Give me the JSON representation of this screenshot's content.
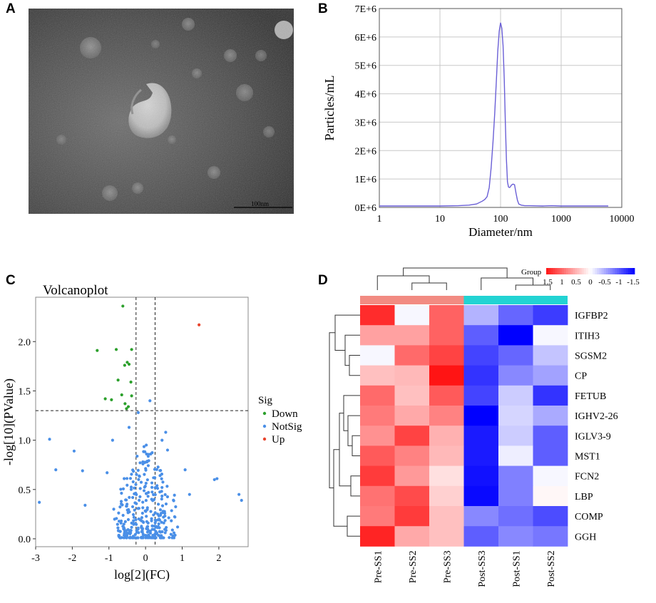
{
  "panels": {
    "a": {
      "letter": "A",
      "scale_label": "100nm"
    },
    "b": {
      "letter": "B"
    },
    "c": {
      "letter": "C"
    },
    "d": {
      "letter": "D"
    }
  },
  "colors": {
    "nta_line": "#6a5fd6",
    "down": "#2ca02c",
    "notsig": "#4a8fe7",
    "up": "#e8442c",
    "pre_bar": "#f28b82",
    "post_bar": "#22d3d3"
  },
  "chart_data": [
    {
      "id": "nta",
      "type": "line",
      "title": "",
      "xlabel": "Diameter/nm",
      "ylabel": "Particles/mL",
      "xscale": "log",
      "xlim": [
        1,
        10000
      ],
      "ylim": [
        0,
        7000000
      ],
      "xticks": [
        1,
        10,
        100,
        1000,
        10000
      ],
      "xtick_labels": [
        "1",
        "10",
        "100",
        "1000",
        "10000"
      ],
      "yticks": [
        0,
        1000000,
        2000000,
        3000000,
        4000000,
        5000000,
        6000000,
        7000000
      ],
      "ytick_labels": [
        "0E+6",
        "1E+6",
        "2E+6",
        "3E+6",
        "4E+6",
        "5E+6",
        "6E+6",
        "7E+6"
      ],
      "grid": true,
      "series": [
        {
          "name": "Particles/mL",
          "x": [
            1,
            2,
            5,
            10,
            20,
            30,
            40,
            50,
            55,
            60,
            65,
            70,
            75,
            80,
            85,
            90,
            95,
            100,
            105,
            110,
            115,
            120,
            125,
            130,
            135,
            140,
            145,
            150,
            160,
            170,
            180,
            190,
            200,
            220,
            250,
            300,
            400,
            500,
            700,
            1000,
            2000,
            6000
          ],
          "y": [
            50000,
            50000,
            50000,
            50000,
            60000,
            80000,
            120000,
            220000,
            280000,
            380000,
            700000,
            1400000,
            2300000,
            3300000,
            4400000,
            5500000,
            6200000,
            6500000,
            6300000,
            5700000,
            4500000,
            3000000,
            1700000,
            900000,
            720000,
            700000,
            720000,
            780000,
            820000,
            800000,
            500000,
            250000,
            120000,
            80000,
            60000,
            60000,
            55000,
            50000,
            60000,
            50000,
            50000,
            50000
          ]
        }
      ]
    },
    {
      "id": "volcano",
      "type": "scatter",
      "title": "Volcanoplot",
      "xlabel": "log[2](FC)",
      "ylabel": "-log[10](PValue)",
      "xlim": [
        -3,
        2.8
      ],
      "ylim": [
        -0.08,
        2.45
      ],
      "xticks": [
        -3,
        -2,
        -1,
        0,
        1,
        2
      ],
      "yticks": [
        0.0,
        0.5,
        1.0,
        1.5,
        2.0
      ],
      "ytick_labels": [
        "0.0",
        "0.5",
        "1.0",
        "1.5",
        "2.0"
      ],
      "thresholds": {
        "vertical": [
          -0.26,
          0.26
        ],
        "horizontal": 1.3
      },
      "legend_title": "Sig",
      "legend_position": "right",
      "series": [
        {
          "name": "Down",
          "points": [
            [
              -0.62,
              2.36
            ],
            [
              -1.32,
              1.91
            ],
            [
              -0.8,
              1.92
            ],
            [
              -0.38,
              1.92
            ],
            [
              -0.5,
              1.79
            ],
            [
              -0.57,
              1.76
            ],
            [
              -0.45,
              1.77
            ],
            [
              -0.75,
              1.61
            ],
            [
              -0.4,
              1.59
            ],
            [
              -0.65,
              1.46
            ],
            [
              -0.38,
              1.45
            ],
            [
              -1.1,
              1.42
            ],
            [
              -0.93,
              1.41
            ],
            [
              -0.56,
              1.37
            ],
            [
              -0.47,
              1.34
            ],
            [
              -0.52,
              1.32
            ]
          ]
        },
        {
          "name": "NotSig",
          "points": []
        },
        {
          "name": "Up",
          "points": [
            [
              1.46,
              2.17
            ]
          ]
        }
      ]
    },
    {
      "id": "heatmap",
      "type": "heatmap",
      "title": "",
      "legend_title": "Group",
      "legend_ticks": [
        "1.5",
        "1",
        "0.5",
        "0",
        "-0.5",
        "-1",
        "-1.5"
      ],
      "rows": [
        "IGFBP2",
        "ITIH3",
        "SGSM2",
        "CP",
        "FETUB",
        "IGHV2-26",
        "IGLV3-9",
        "MST1",
        "FCN2",
        "LBP",
        "COMP",
        "GGH"
      ],
      "columns": [
        "Pre-SS1",
        "Pre-SS2",
        "Pre-SS3",
        "Post-SS3",
        "Post-SS1",
        "Post-SS2"
      ],
      "groups": [
        {
          "name": "Pre",
          "columns": [
            "Pre-SS1",
            "Pre-SS2",
            "Pre-SS3"
          ]
        },
        {
          "name": "Post",
          "columns": [
            "Post-SS3",
            "Post-SS1",
            "Post-SS2"
          ]
        }
      ],
      "values": [
        [
          1.35,
          -0.05,
          1.0,
          -0.45,
          -0.9,
          -1.15
        ],
        [
          0.6,
          0.6,
          1.0,
          -0.95,
          -1.5,
          -0.05
        ],
        [
          -0.05,
          0.95,
          1.2,
          -1.1,
          -0.9,
          -0.35
        ],
        [
          0.4,
          0.45,
          1.5,
          -1.2,
          -0.7,
          -0.55
        ],
        [
          0.95,
          0.4,
          1.05,
          -1.1,
          -0.3,
          -1.2
        ],
        [
          0.85,
          0.55,
          0.8,
          -1.5,
          -0.25,
          -0.5
        ],
        [
          0.7,
          1.2,
          0.5,
          -1.35,
          -0.3,
          -0.95
        ],
        [
          1.05,
          0.8,
          0.45,
          -1.35,
          -0.1,
          -0.95
        ],
        [
          1.25,
          0.65,
          0.2,
          -1.4,
          -0.75,
          -0.05
        ],
        [
          0.9,
          1.15,
          0.3,
          -1.45,
          -0.75,
          0.05
        ],
        [
          0.85,
          1.25,
          0.4,
          -0.7,
          -0.85,
          -1.05
        ],
        [
          1.4,
          0.55,
          0.4,
          -0.95,
          -0.7,
          -0.8
        ]
      ]
    }
  ]
}
